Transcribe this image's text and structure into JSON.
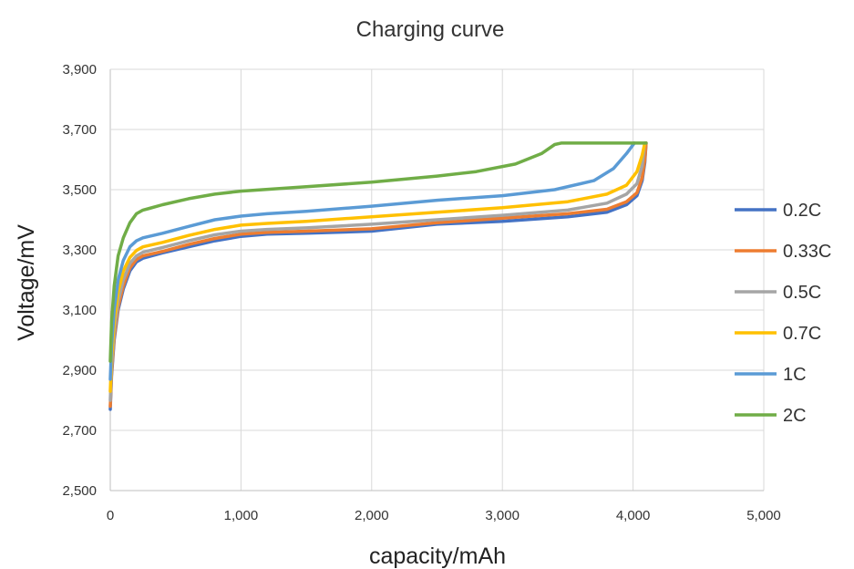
{
  "chart_data": {
    "type": "line",
    "title": "Charging curve",
    "xlabel": "capacity/mAh",
    "ylabel": "Voltage/mV",
    "xlim": [
      0,
      5000
    ],
    "ylim": [
      2500,
      3900
    ],
    "xticks": [
      "0",
      "1,000",
      "2,000",
      "3,000",
      "4,000",
      "5,000"
    ],
    "yticks": [
      "2,500",
      "2,700",
      "2,900",
      "3,100",
      "3,300",
      "3,500",
      "3,700",
      "3,900"
    ],
    "grid": true,
    "legend_position": "right",
    "series": [
      {
        "name": "0.2C",
        "color": "#4472c4",
        "x": [
          0,
          10,
          30,
          60,
          100,
          150,
          200,
          250,
          400,
          600,
          800,
          1000,
          1200,
          1500,
          2000,
          2500,
          3000,
          3500,
          3800,
          3950,
          4030,
          4070,
          4090,
          4100
        ],
        "y": [
          2770,
          2880,
          3000,
          3100,
          3170,
          3230,
          3260,
          3272,
          3290,
          3310,
          3330,
          3345,
          3352,
          3355,
          3362,
          3385,
          3395,
          3410,
          3425,
          3450,
          3480,
          3530,
          3590,
          3655
        ]
      },
      {
        "name": "0.33C",
        "color": "#ed7d31",
        "x": [
          0,
          10,
          30,
          60,
          100,
          150,
          200,
          250,
          400,
          600,
          800,
          1000,
          1200,
          1500,
          2000,
          2500,
          3000,
          3500,
          3800,
          3950,
          4030,
          4070,
          4090,
          4100
        ],
        "y": [
          2780,
          2890,
          3010,
          3110,
          3180,
          3240,
          3268,
          3280,
          3295,
          3318,
          3338,
          3352,
          3358,
          3362,
          3370,
          3390,
          3405,
          3420,
          3435,
          3460,
          3490,
          3540,
          3600,
          3655
        ]
      },
      {
        "name": "0.5C",
        "color": "#a5a5a5",
        "x": [
          0,
          10,
          30,
          60,
          100,
          150,
          200,
          250,
          400,
          600,
          800,
          1000,
          1200,
          1500,
          2000,
          2500,
          3000,
          3500,
          3800,
          3950,
          4030,
          4070,
          4090
        ],
        "y": [
          2800,
          2910,
          3030,
          3130,
          3200,
          3255,
          3280,
          3292,
          3308,
          3330,
          3350,
          3362,
          3368,
          3373,
          3385,
          3400,
          3415,
          3432,
          3455,
          3485,
          3520,
          3580,
          3655
        ]
      },
      {
        "name": "0.7C",
        "color": "#ffc000",
        "x": [
          0,
          10,
          30,
          60,
          100,
          150,
          200,
          250,
          400,
          600,
          800,
          1000,
          1200,
          1500,
          2000,
          2500,
          3000,
          3500,
          3800,
          3950,
          4030,
          4070,
          4090
        ],
        "y": [
          2830,
          2940,
          3060,
          3160,
          3230,
          3275,
          3298,
          3310,
          3325,
          3348,
          3368,
          3382,
          3388,
          3395,
          3410,
          3425,
          3440,
          3460,
          3485,
          3515,
          3560,
          3615,
          3655
        ]
      },
      {
        "name": "1C",
        "color": "#5b9bd5",
        "x": [
          0,
          10,
          30,
          60,
          100,
          150,
          200,
          250,
          400,
          600,
          800,
          1000,
          1200,
          1500,
          2000,
          2500,
          3000,
          3400,
          3700,
          3850,
          3950,
          4010
        ],
        "y": [
          2870,
          2980,
          3100,
          3200,
          3265,
          3310,
          3330,
          3340,
          3355,
          3378,
          3400,
          3412,
          3420,
          3428,
          3445,
          3465,
          3480,
          3500,
          3530,
          3570,
          3620,
          3655
        ]
      },
      {
        "name": "2C",
        "color": "#70ad47",
        "x": [
          0,
          10,
          30,
          60,
          100,
          150,
          200,
          250,
          300,
          400,
          600,
          800,
          1000,
          1500,
          2000,
          2500,
          2800,
          3100,
          3300,
          3400,
          3450,
          4100
        ],
        "y": [
          2930,
          3060,
          3180,
          3280,
          3340,
          3390,
          3420,
          3432,
          3438,
          3450,
          3470,
          3485,
          3495,
          3510,
          3525,
          3545,
          3560,
          3585,
          3620,
          3650,
          3655,
          3655
        ]
      }
    ]
  }
}
